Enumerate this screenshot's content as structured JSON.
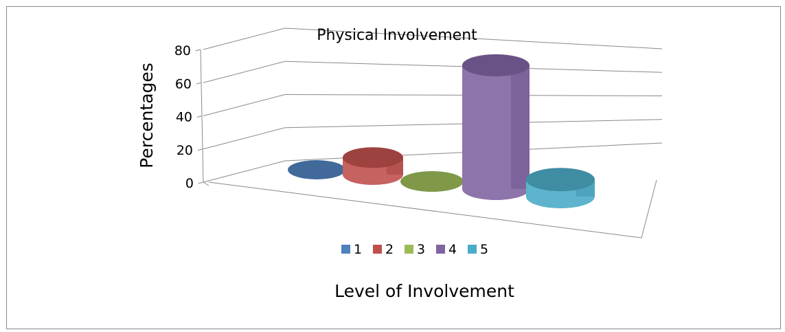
{
  "chart_data": {
    "type": "bar",
    "style": "3d-cylinder",
    "title": "Physical Involvement",
    "xlabel": "Level of Involvement",
    "ylabel": "Percentages",
    "ylim": [
      0,
      80
    ],
    "yticks": [
      "0",
      "20",
      "40",
      "60",
      "80"
    ],
    "grid": true,
    "legend_position": "bottom",
    "series": [
      {
        "name": "1",
        "value": 0,
        "color": "#4F81BD"
      },
      {
        "name": "2",
        "value": 11,
        "color": "#C0504D"
      },
      {
        "name": "3",
        "value": 0,
        "color": "#9BBB59"
      },
      {
        "name": "4",
        "value": 80,
        "color": "#8064A2"
      },
      {
        "name": "5",
        "value": 11,
        "color": "#4BACC6"
      }
    ]
  }
}
